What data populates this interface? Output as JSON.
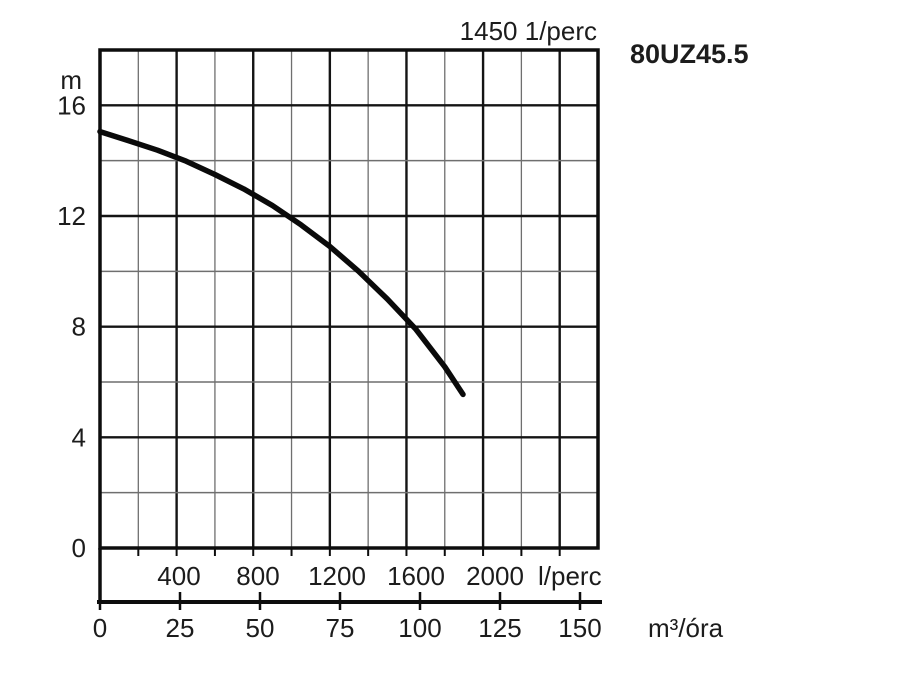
{
  "window": {
    "background": "#ffffff"
  },
  "chart_data": {
    "type": "line",
    "title": "80UZ45.5",
    "annotation": "1450 1/perc",
    "grid": "on",
    "legend": "none",
    "y_axis": {
      "unit": "m",
      "min": 0,
      "max": 18,
      "minor_step": 2,
      "major_step": 4,
      "labeled_ticks": [
        0,
        4,
        8,
        12,
        16
      ]
    },
    "x_axis_inner": {
      "unit": "l/perc",
      "min": 0,
      "max": 2600,
      "minor_step": 200,
      "major_step": 400,
      "labeled_ticks": [
        400,
        800,
        1200,
        1600,
        2000
      ]
    },
    "x_axis_outer": {
      "unit": "m³/óra",
      "min": 0,
      "max": 150,
      "step": 25,
      "labeled_ticks": [
        0,
        25,
        50,
        75,
        100,
        125,
        150
      ]
    },
    "series": [
      {
        "name": "pump-head-curve",
        "x_unit": "l/perc",
        "y_unit": "m",
        "x": [
          0,
          150,
          300,
          450,
          600,
          750,
          900,
          1050,
          1200,
          1350,
          1500,
          1650,
          1800,
          1895
        ],
        "y": [
          15.05,
          14.72,
          14.38,
          13.98,
          13.5,
          12.98,
          12.38,
          11.68,
          10.9,
          10.0,
          9.0,
          7.9,
          6.55,
          5.55
        ]
      }
    ],
    "colors": {
      "curve": "#0a0a0a",
      "frame": "#0d0d0d",
      "major_grid": "#141414",
      "minor_grid": "#6f6f6f",
      "text": "#1c1c1c",
      "background": "#ffffff"
    }
  }
}
